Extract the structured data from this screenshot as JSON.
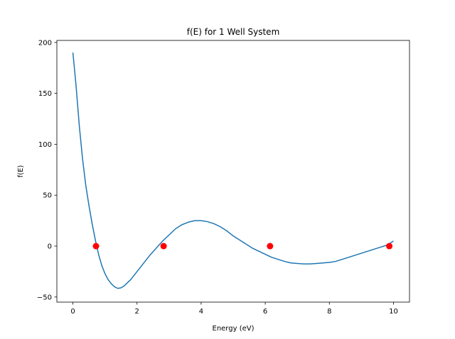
{
  "chart_data": {
    "type": "line",
    "title": "f(E) for 1 Well System",
    "xlabel": "Energy (eV)",
    "ylabel": "f(E)",
    "xlim": [
      -0.5,
      10.5
    ],
    "ylim": [
      -55,
      202
    ],
    "xticks": [
      0,
      2,
      4,
      6,
      8,
      10
    ],
    "yticks": [
      -50,
      0,
      50,
      100,
      150,
      200
    ],
    "grid": false,
    "series": [
      {
        "type": "line",
        "color": "#1f77b4",
        "x": [
          0.0,
          0.1,
          0.2,
          0.3,
          0.4,
          0.5,
          0.6,
          0.7,
          0.8,
          0.9,
          1.0,
          1.1,
          1.2,
          1.3,
          1.4,
          1.5,
          1.6,
          1.7,
          1.8,
          1.9,
          2.0,
          2.2,
          2.4,
          2.6,
          2.8,
          3.0,
          3.2,
          3.4,
          3.6,
          3.8,
          4.0,
          4.2,
          4.4,
          4.6,
          4.8,
          5.0,
          5.2,
          5.4,
          5.6,
          5.8,
          6.0,
          6.2,
          6.4,
          6.6,
          6.8,
          7.0,
          7.2,
          7.4,
          7.6,
          7.8,
          8.0,
          8.2,
          8.4,
          8.6,
          8.8,
          9.0,
          9.2,
          9.4,
          9.6,
          9.8,
          10.0
        ],
        "y": [
          190,
          157,
          118,
          86,
          60,
          40,
          22,
          6,
          -8,
          -19,
          -27,
          -33,
          -37,
          -40,
          -41.5,
          -41,
          -39,
          -36,
          -33,
          -29,
          -25,
          -17,
          -9,
          -2,
          5,
          11,
          17,
          21,
          23.5,
          25,
          25,
          24,
          22,
          19,
          15,
          10,
          6,
          2,
          -2,
          -5,
          -8,
          -11,
          -13,
          -15,
          -16.5,
          -17,
          -17.5,
          -17.5,
          -17,
          -16.5,
          -16,
          -15,
          -13,
          -11,
          -9,
          -7,
          -5,
          -3,
          -1,
          1,
          5
        ]
      },
      {
        "type": "scatter",
        "color": "#ff0000",
        "x": [
          0.72,
          2.83,
          6.15,
          9.87
        ],
        "y": [
          0,
          0,
          0,
          0
        ]
      }
    ]
  }
}
